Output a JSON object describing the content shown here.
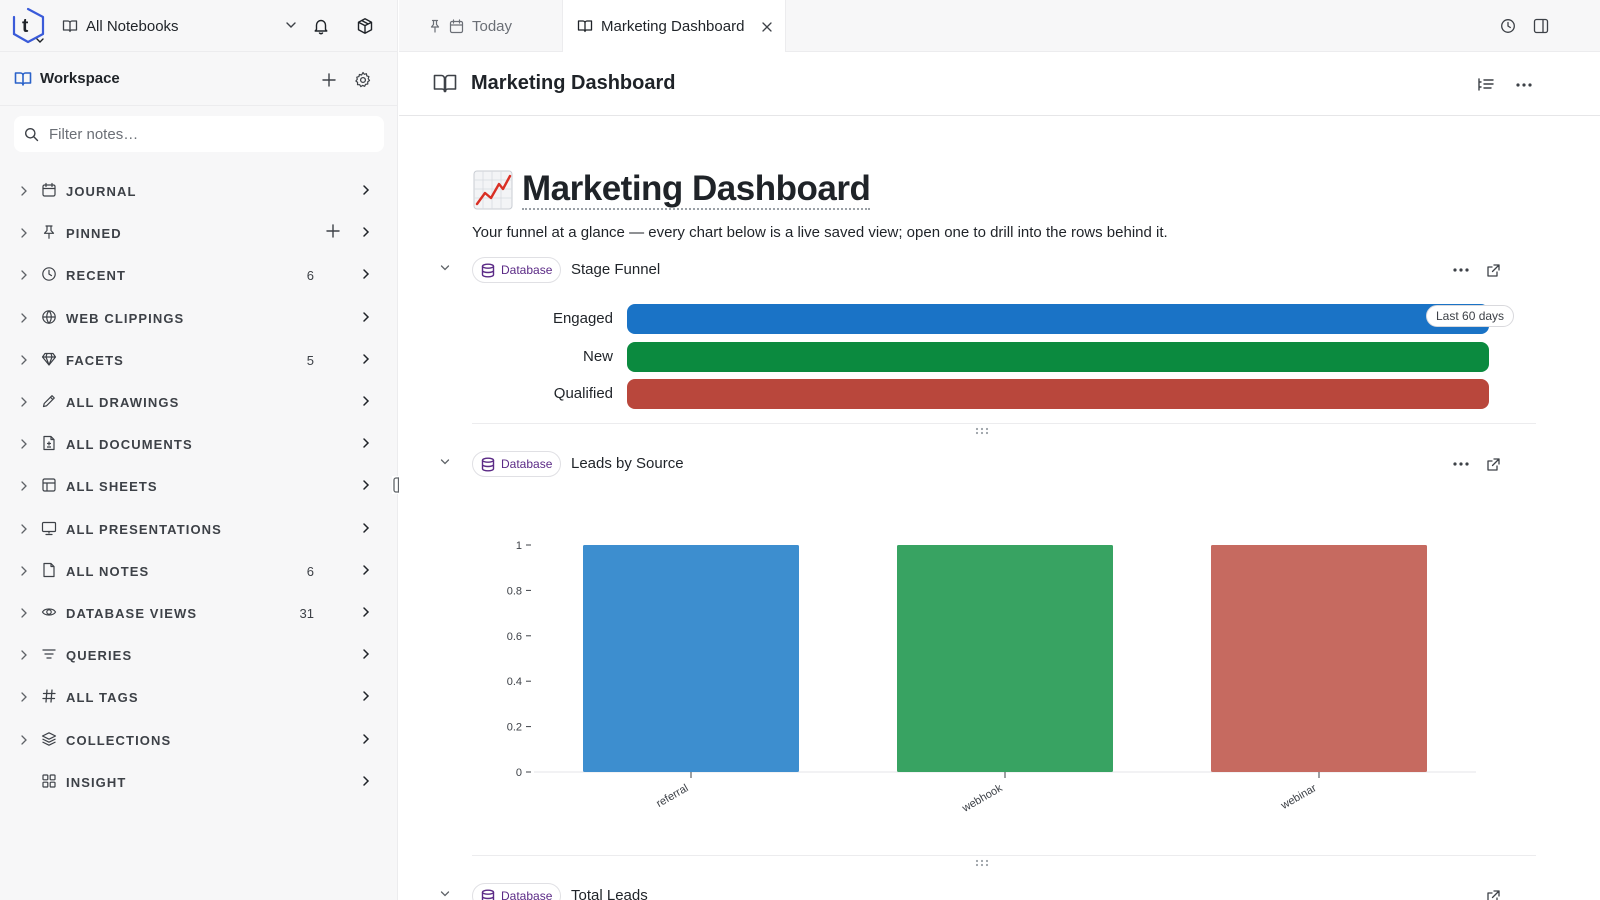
{
  "app": {
    "notebook_picker": "All Notebooks",
    "workspace": "Workspace",
    "filter_placeholder": "Filter notes…"
  },
  "sidebar": {
    "items": [
      {
        "label": "JOURNAL",
        "icon": "calendar-icon",
        "count": ""
      },
      {
        "label": "PINNED",
        "icon": "pin-icon",
        "count": ""
      },
      {
        "label": "RECENT",
        "icon": "clock-icon",
        "count": "6"
      },
      {
        "label": "WEB CLIPPINGS",
        "icon": "globe-icon",
        "count": ""
      },
      {
        "label": "FACETS",
        "icon": "gem-icon",
        "count": "5"
      },
      {
        "label": "ALL DRAWINGS",
        "icon": "pencil-icon",
        "count": ""
      },
      {
        "label": "ALL DOCUMENTS",
        "icon": "document-icon",
        "count": ""
      },
      {
        "label": "ALL SHEETS",
        "icon": "sheet-icon",
        "count": ""
      },
      {
        "label": "ALL PRESENTATIONS",
        "icon": "presentation-icon",
        "count": ""
      },
      {
        "label": "ALL NOTES",
        "icon": "note-icon",
        "count": "6"
      },
      {
        "label": "DATABASE VIEWS",
        "icon": "eye-icon",
        "count": "31"
      },
      {
        "label": "QUERIES",
        "icon": "filter-icon",
        "count": ""
      },
      {
        "label": "ALL TAGS",
        "icon": "hash-icon",
        "count": ""
      },
      {
        "label": "COLLECTIONS",
        "icon": "layers-icon",
        "count": ""
      },
      {
        "label": "INSIGHT",
        "icon": "grid-icon",
        "count": ""
      }
    ]
  },
  "tabs": [
    {
      "label": "Today",
      "active": false
    },
    {
      "label": "Marketing Dashboard",
      "active": true
    }
  ],
  "page": {
    "header_title": "Marketing Dashboard",
    "title": "Marketing Dashboard",
    "emoji": "chart-increasing-emoji",
    "description": "Your funnel at a glance — every chart below is a live saved view; open one to drill into the rows behind it."
  },
  "blocks": {
    "badge": "Database",
    "stage_funnel": {
      "title": "Stage Funnel",
      "range_pill": "Last 60 days"
    },
    "leads_by_source": {
      "title": "Leads by Source"
    },
    "total_leads": {
      "title": "Total Leads"
    }
  },
  "colors": {
    "accent_badge": "#5b2a86",
    "engaged": "#1a73c6",
    "new": "#0b8a3f",
    "qualified": "#b9473c",
    "referral": "#3d8ecf",
    "webhook": "#38a362",
    "webinar": "#c66a60"
  },
  "chart_data": [
    {
      "type": "bar",
      "orientation": "horizontal",
      "categories": [
        "Engaged",
        "New",
        "Qualified"
      ],
      "values": [
        1,
        1,
        1
      ],
      "annotation": "Last 60 days"
    },
    {
      "type": "bar",
      "categories": [
        "referral",
        "webhook",
        "webinar"
      ],
      "values": [
        1,
        1,
        1
      ],
      "ylim": [
        0,
        1
      ],
      "yticks": [
        "0",
        "0.2",
        "0.4",
        "0.6",
        "0.8",
        "1"
      ],
      "grid": false
    }
  ]
}
